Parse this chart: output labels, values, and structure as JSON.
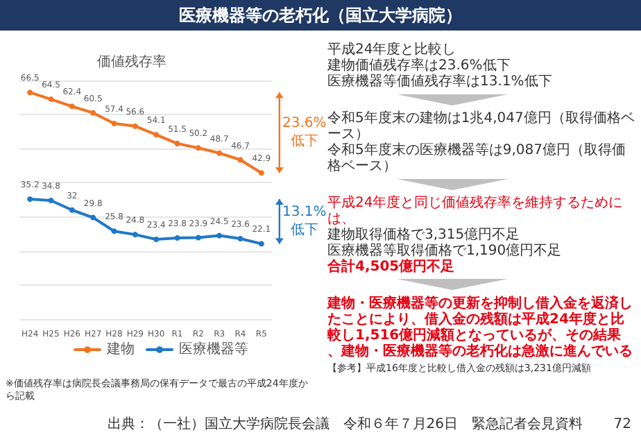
{
  "chart_data": {
    "type": "line",
    "title": "医療機器等の老朽化（国立大学病院）",
    "subtitle": "価値残存率",
    "categories": [
      "H24",
      "H25",
      "H26",
      "H27",
      "H28",
      "H29",
      "H30",
      "R1",
      "R2",
      "R3",
      "R4",
      "R5"
    ],
    "series": [
      {
        "name": "建物",
        "color": "#f37321",
        "values": [
          66.5,
          64.5,
          62.4,
          60.5,
          57.4,
          56.6,
          54.1,
          51.5,
          50.2,
          48.7,
          46.7,
          42.9
        ]
      },
      {
        "name": "医療機器等",
        "color": "#1f78c8",
        "values": [
          35.2,
          34.8,
          32.0,
          29.8,
          25.8,
          24.8,
          23.4,
          23.8,
          23.9,
          24.5,
          23.6,
          22.1
        ]
      }
    ],
    "ylim": [
      0,
      70
    ],
    "yticks": [
      0,
      10,
      20,
      30,
      40,
      50,
      60,
      70
    ],
    "tick_labels": "x",
    "grid": "y",
    "legend": "bottom",
    "marker": "circle",
    "line_style": "solid",
    "data_labels": true,
    "annotations": [
      {
        "text": "23.6%低下",
        "x": "R5",
        "y": 42.9
      },
      {
        "text": "13.1%低下",
        "x": "R5",
        "y": 22.1
      },
      "平成24年度と比較し",
      "建物価値残存率は23.6%低下",
      "医療機器等価値残存率は13.1%低下",
      "令和5年度末の建物は1兆4,047億円（取得価格ベース）",
      "令和5年度末の医療機器等は9,087億円（取得価格ベース）",
      "平成24年度と同じ価値残存率を維持するためには、",
      "建物取得価格で3,315億円不足",
      "医療機器等取得価格で1,190億円不足",
      "合計4,505億円不足",
      "建物・医療機器等の更新を抑制し借入金を返済したことにより、借入金の残額は平成24年度と比較し1,516億円減額となっているが、その結果、建物・医療機器等の老朽化は急激に進んでいる",
      "【参考】平成16年度と比較し借入金の残額は3,231億円減額",
      "※価値残存率は病院長会議事務局の保有データで最古の平成24年度から記載",
      "出典：（一社）国立大学病院長会議　令和６年７月26日　緊急記者会見資料",
      "72"
    ]
  }
}
